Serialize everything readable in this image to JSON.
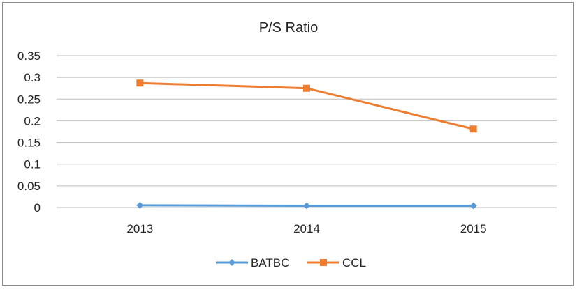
{
  "chart_data": {
    "type": "line",
    "title": "P/S  Ratio",
    "xlabel": "",
    "ylabel": "",
    "categories": [
      "2013",
      "2014",
      "2015"
    ],
    "ylim": [
      0,
      0.35
    ],
    "yticks": [
      "0.35",
      "0.3",
      "0.25",
      "0.2",
      "0.15",
      "0.1",
      "0.05",
      "0"
    ],
    "grid": true,
    "legend_position": "bottom",
    "series": [
      {
        "name": "BATBC",
        "values": [
          0.005,
          0.004,
          0.004
        ],
        "color": "#5b9bd5",
        "marker": "diamond"
      },
      {
        "name": "CCL",
        "values": [
          0.287,
          0.275,
          0.181
        ],
        "color": "#ed7d31",
        "marker": "square"
      }
    ]
  }
}
